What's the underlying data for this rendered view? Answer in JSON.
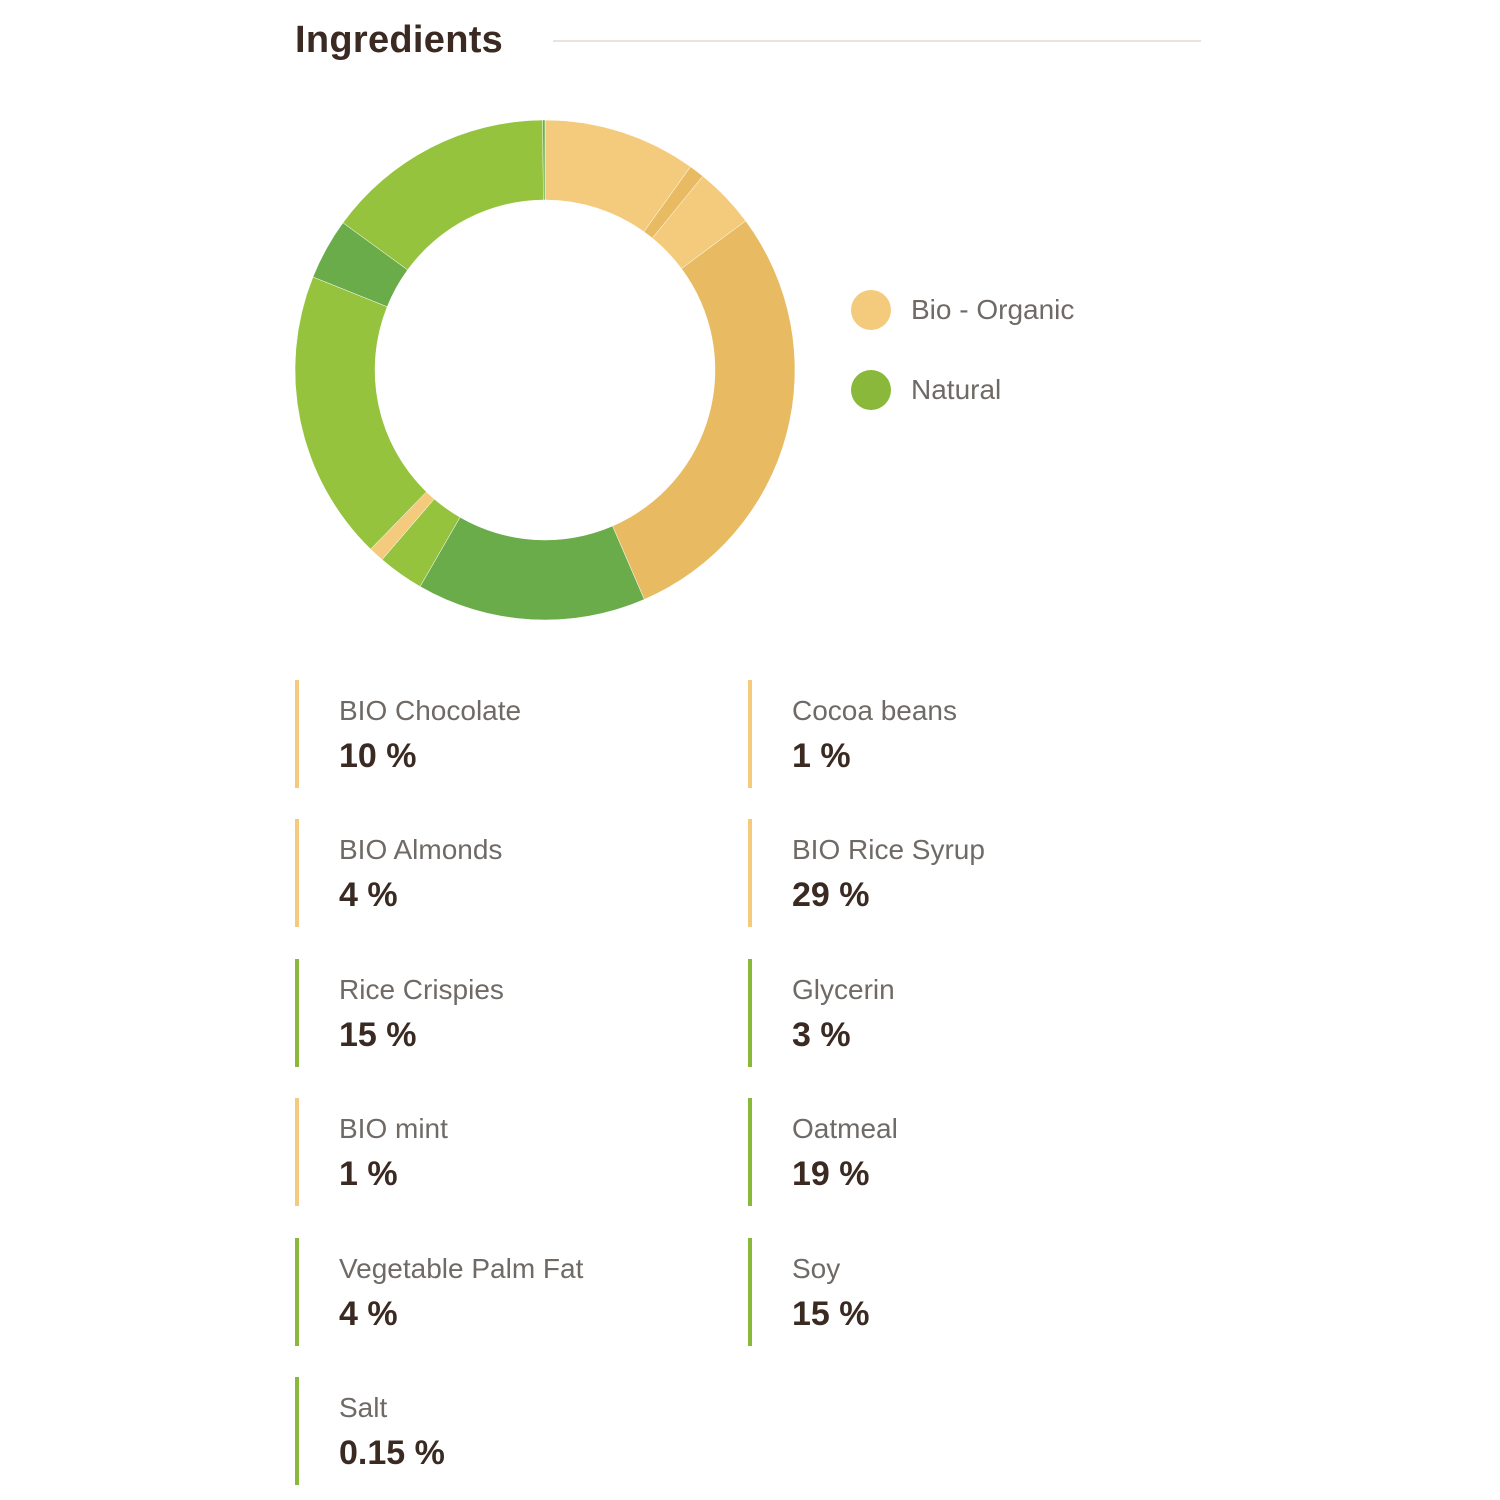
{
  "header": {
    "title": "Ingredients"
  },
  "legend": [
    {
      "label": "Bio - Organic",
      "color": "#f4cb7d"
    },
    {
      "label": "Natural",
      "color": "#8ab83a"
    }
  ],
  "colors": {
    "title": "#3a2a22",
    "label": "#6f6a66",
    "rule": "#ece3db",
    "bio_border": "#f4cb7d",
    "natural_border": "#8ab83a"
  },
  "ingredients": [
    {
      "name": "BIO Chocolate",
      "percent": "10 %",
      "category": "bio"
    },
    {
      "name": "Cocoa beans",
      "percent": "1 %",
      "category": "bio"
    },
    {
      "name": "BIO Almonds",
      "percent": "4 %",
      "category": "bio"
    },
    {
      "name": "BIO Rice Syrup",
      "percent": "29 %",
      "category": "bio"
    },
    {
      "name": "Rice Crispies",
      "percent": "15 %",
      "category": "natural"
    },
    {
      "name": "Glycerin",
      "percent": "3 %",
      "category": "natural"
    },
    {
      "name": "BIO mint",
      "percent": "1 %",
      "category": "bio"
    },
    {
      "name": "Oatmeal",
      "percent": "19 %",
      "category": "natural"
    },
    {
      "name": "Vegetable Palm Fat",
      "percent": "4 %",
      "category": "natural"
    },
    {
      "name": "Soy",
      "percent": "15 %",
      "category": "natural"
    },
    {
      "name": "Salt",
      "percent": "0.15 %",
      "category": "natural"
    }
  ],
  "chart_data": {
    "type": "pie",
    "variant": "donut",
    "title": "",
    "start": "top, clockwise",
    "categories": [
      "BIO Chocolate",
      "Cocoa beans",
      "BIO Almonds",
      "BIO Rice Syrup",
      "Soy",
      "Glycerin",
      "BIO mint",
      "Oatmeal",
      "Vegetable Palm Fat",
      "Rice Crispies",
      "Salt"
    ],
    "values": [
      10,
      1,
      4,
      29,
      15,
      3,
      1,
      19,
      4,
      15,
      0.15
    ],
    "colors": [
      "#f4cb7d",
      "#e8bb62",
      "#f4cb7d",
      "#e8bb62",
      "#6aab4a",
      "#95c33e",
      "#f4cb7d",
      "#95c33e",
      "#6aab4a",
      "#95c33e",
      "#6aab4a"
    ],
    "legend": [
      "Bio - Organic",
      "Natural"
    ],
    "legend_position": "right"
  }
}
